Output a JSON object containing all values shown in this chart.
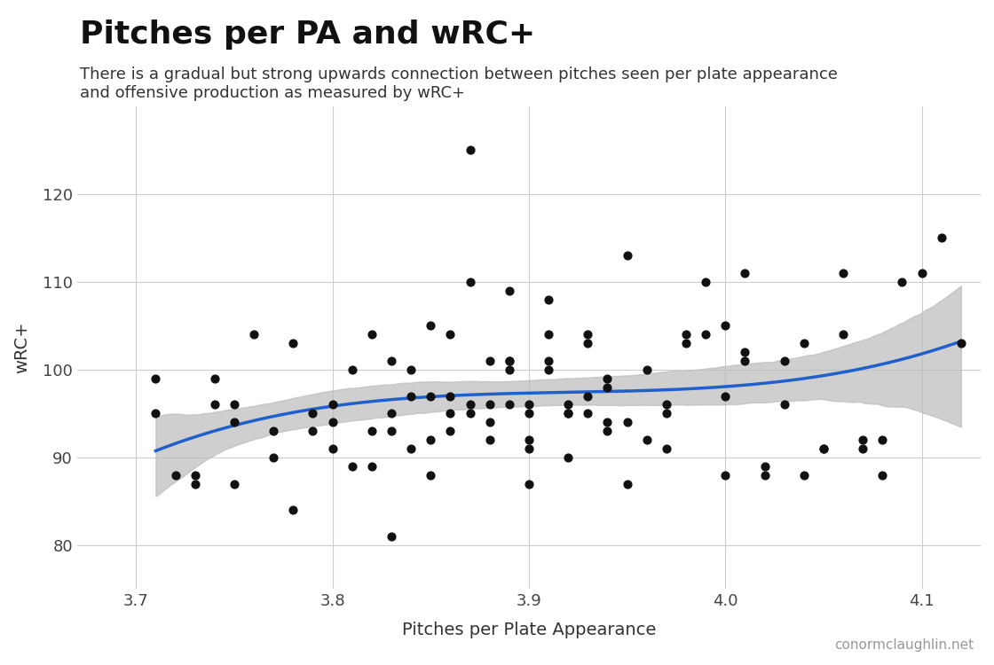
{
  "title": "Pitches per PA and wRC+",
  "subtitle": "There is a gradual but strong upwards connection between pitches seen per plate appearance\nand offensive production as measured by wRC+",
  "xlabel": "Pitches per Plate Appearance",
  "ylabel": "wRC+",
  "watermark": "conormclaughlin.net",
  "xlim": [
    3.67,
    4.13
  ],
  "ylim": [
    75,
    130
  ],
  "xticks": [
    3.7,
    3.8,
    3.9,
    4.0,
    4.1
  ],
  "yticks": [
    80,
    90,
    100,
    110,
    120
  ],
  "line_color": "#2060cc",
  "ci_color": "#bbbbbb",
  "dot_color": "#111111",
  "bg_color": "#ffffff",
  "grid_color": "#cccccc",
  "scatter_x": [
    3.71,
    3.71,
    3.72,
    3.73,
    3.73,
    3.74,
    3.74,
    3.75,
    3.75,
    3.75,
    3.76,
    3.77,
    3.77,
    3.78,
    3.78,
    3.79,
    3.79,
    3.8,
    3.8,
    3.8,
    3.81,
    3.81,
    3.82,
    3.82,
    3.82,
    3.83,
    3.83,
    3.83,
    3.83,
    3.84,
    3.84,
    3.84,
    3.85,
    3.85,
    3.85,
    3.85,
    3.86,
    3.86,
    3.86,
    3.86,
    3.87,
    3.87,
    3.87,
    3.87,
    3.88,
    3.88,
    3.88,
    3.88,
    3.89,
    3.89,
    3.89,
    3.89,
    3.89,
    3.9,
    3.9,
    3.9,
    3.9,
    3.9,
    3.91,
    3.91,
    3.91,
    3.91,
    3.92,
    3.92,
    3.92,
    3.92,
    3.93,
    3.93,
    3.93,
    3.93,
    3.94,
    3.94,
    3.94,
    3.94,
    3.95,
    3.95,
    3.95,
    3.96,
    3.96,
    3.97,
    3.97,
    3.97,
    3.98,
    3.98,
    3.99,
    3.99,
    4.0,
    4.0,
    4.0,
    4.01,
    4.01,
    4.01,
    4.02,
    4.02,
    4.03,
    4.03,
    4.04,
    4.04,
    4.05,
    4.05,
    4.06,
    4.06,
    4.07,
    4.07,
    4.08,
    4.08,
    4.09,
    4.1,
    4.11,
    4.12
  ],
  "scatter_y": [
    99,
    95,
    88,
    87,
    88,
    99,
    96,
    94,
    96,
    87,
    104,
    93,
    90,
    103,
    84,
    95,
    93,
    96,
    94,
    91,
    100,
    89,
    93,
    104,
    89,
    95,
    93,
    101,
    81,
    97,
    91,
    100,
    105,
    97,
    92,
    88,
    104,
    97,
    95,
    93,
    96,
    95,
    110,
    125,
    96,
    101,
    94,
    92,
    101,
    101,
    109,
    100,
    96,
    96,
    95,
    92,
    91,
    87,
    108,
    104,
    101,
    100,
    96,
    95,
    95,
    90,
    104,
    103,
    97,
    95,
    99,
    98,
    94,
    93,
    113,
    94,
    87,
    100,
    92,
    96,
    95,
    91,
    104,
    103,
    110,
    104,
    105,
    97,
    88,
    101,
    102,
    111,
    88,
    89,
    101,
    96,
    103,
    88,
    91,
    91,
    111,
    104,
    91,
    92,
    92,
    88,
    110,
    111,
    115,
    103
  ]
}
